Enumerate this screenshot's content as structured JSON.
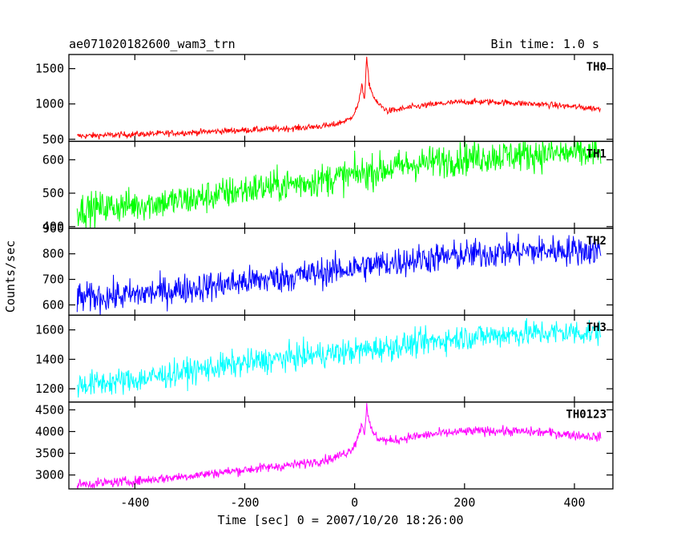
{
  "chart_data": {
    "type": "line",
    "title": "ae071020182600_wam3_trn",
    "subtitle": "Bin time: 1.0 s",
    "xlabel": "Time [sec] 0 = 2007/10/20 18:26:00",
    "ylabel": "Counts/sec",
    "xlim": [
      -520,
      470
    ],
    "x_ticks": [
      -400,
      -200,
      0,
      200,
      400
    ],
    "x_data_range": [
      -505,
      448
    ],
    "grid": false,
    "legend": "none",
    "panels": [
      {
        "name": "TH0",
        "color": "#ff0000",
        "ylim": [
          470,
          1700
        ],
        "y_ticks": [
          500,
          1000,
          1500
        ],
        "noise": 22,
        "profile": [
          [
            -505,
            545
          ],
          [
            -400,
            570
          ],
          [
            -300,
            595
          ],
          [
            -200,
            630
          ],
          [
            -100,
            660
          ],
          [
            -40,
            700
          ],
          [
            -10,
            780
          ],
          [
            0,
            880
          ],
          [
            8,
            1020
          ],
          [
            13,
            1300
          ],
          [
            18,
            1050
          ],
          [
            22,
            1650
          ],
          [
            26,
            1300
          ],
          [
            32,
            1150
          ],
          [
            40,
            1020
          ],
          [
            50,
            960
          ],
          [
            60,
            900
          ],
          [
            80,
            920
          ],
          [
            100,
            950
          ],
          [
            150,
            1000
          ],
          [
            200,
            1030
          ],
          [
            250,
            1030
          ],
          [
            300,
            1010
          ],
          [
            350,
            990
          ],
          [
            400,
            960
          ],
          [
            448,
            930
          ]
        ]
      },
      {
        "name": "TH1",
        "color": "#00ff00",
        "ylim": [
          395,
          655
        ],
        "y_ticks": [
          400,
          500,
          600
        ],
        "noise": 25,
        "profile": [
          [
            -505,
            450
          ],
          [
            -400,
            465
          ],
          [
            -300,
            480
          ],
          [
            -200,
            510
          ],
          [
            -100,
            530
          ],
          [
            0,
            555
          ],
          [
            50,
            570
          ],
          [
            100,
            585
          ],
          [
            200,
            605
          ],
          [
            300,
            615
          ],
          [
            400,
            620
          ],
          [
            448,
            615
          ]
        ]
      },
      {
        "name": "TH2",
        "color": "#0000ff",
        "ylim": [
          560,
          900
        ],
        "y_ticks": [
          600,
          700,
          800,
          900
        ],
        "noise": 30,
        "profile": [
          [
            -505,
            625
          ],
          [
            -400,
            640
          ],
          [
            -300,
            665
          ],
          [
            -200,
            690
          ],
          [
            -100,
            715
          ],
          [
            0,
            745
          ],
          [
            100,
            775
          ],
          [
            200,
            795
          ],
          [
            300,
            810
          ],
          [
            400,
            815
          ],
          [
            448,
            810
          ]
        ]
      },
      {
        "name": "TH3",
        "color": "#00ffff",
        "ylim": [
          1110,
          1700
        ],
        "y_ticks": [
          1200,
          1400,
          1600
        ],
        "noise": 45,
        "profile": [
          [
            -505,
            1225
          ],
          [
            -400,
            1260
          ],
          [
            -300,
            1320
          ],
          [
            -200,
            1375
          ],
          [
            -100,
            1420
          ],
          [
            0,
            1455
          ],
          [
            100,
            1500
          ],
          [
            200,
            1550
          ],
          [
            300,
            1575
          ],
          [
            400,
            1585
          ],
          [
            448,
            1580
          ]
        ]
      },
      {
        "name": "TH0123",
        "color": "#ff00ff",
        "ylim": [
          2680,
          4680
        ],
        "y_ticks": [
          3000,
          3500,
          4000,
          4500
        ],
        "noise": 55,
        "profile": [
          [
            -505,
            2780
          ],
          [
            -400,
            2860
          ],
          [
            -300,
            2980
          ],
          [
            -200,
            3120
          ],
          [
            -100,
            3250
          ],
          [
            -40,
            3380
          ],
          [
            -10,
            3550
          ],
          [
            0,
            3700
          ],
          [
            8,
            3950
          ],
          [
            13,
            4200
          ],
          [
            18,
            3950
          ],
          [
            22,
            4650
          ],
          [
            26,
            4200
          ],
          [
            32,
            4000
          ],
          [
            40,
            3870
          ],
          [
            50,
            3820
          ],
          [
            60,
            3780
          ],
          [
            80,
            3820
          ],
          [
            100,
            3870
          ],
          [
            150,
            3950
          ],
          [
            200,
            4000
          ],
          [
            250,
            4020
          ],
          [
            300,
            4000
          ],
          [
            350,
            3980
          ],
          [
            400,
            3920
          ],
          [
            448,
            3870
          ]
        ]
      }
    ]
  }
}
